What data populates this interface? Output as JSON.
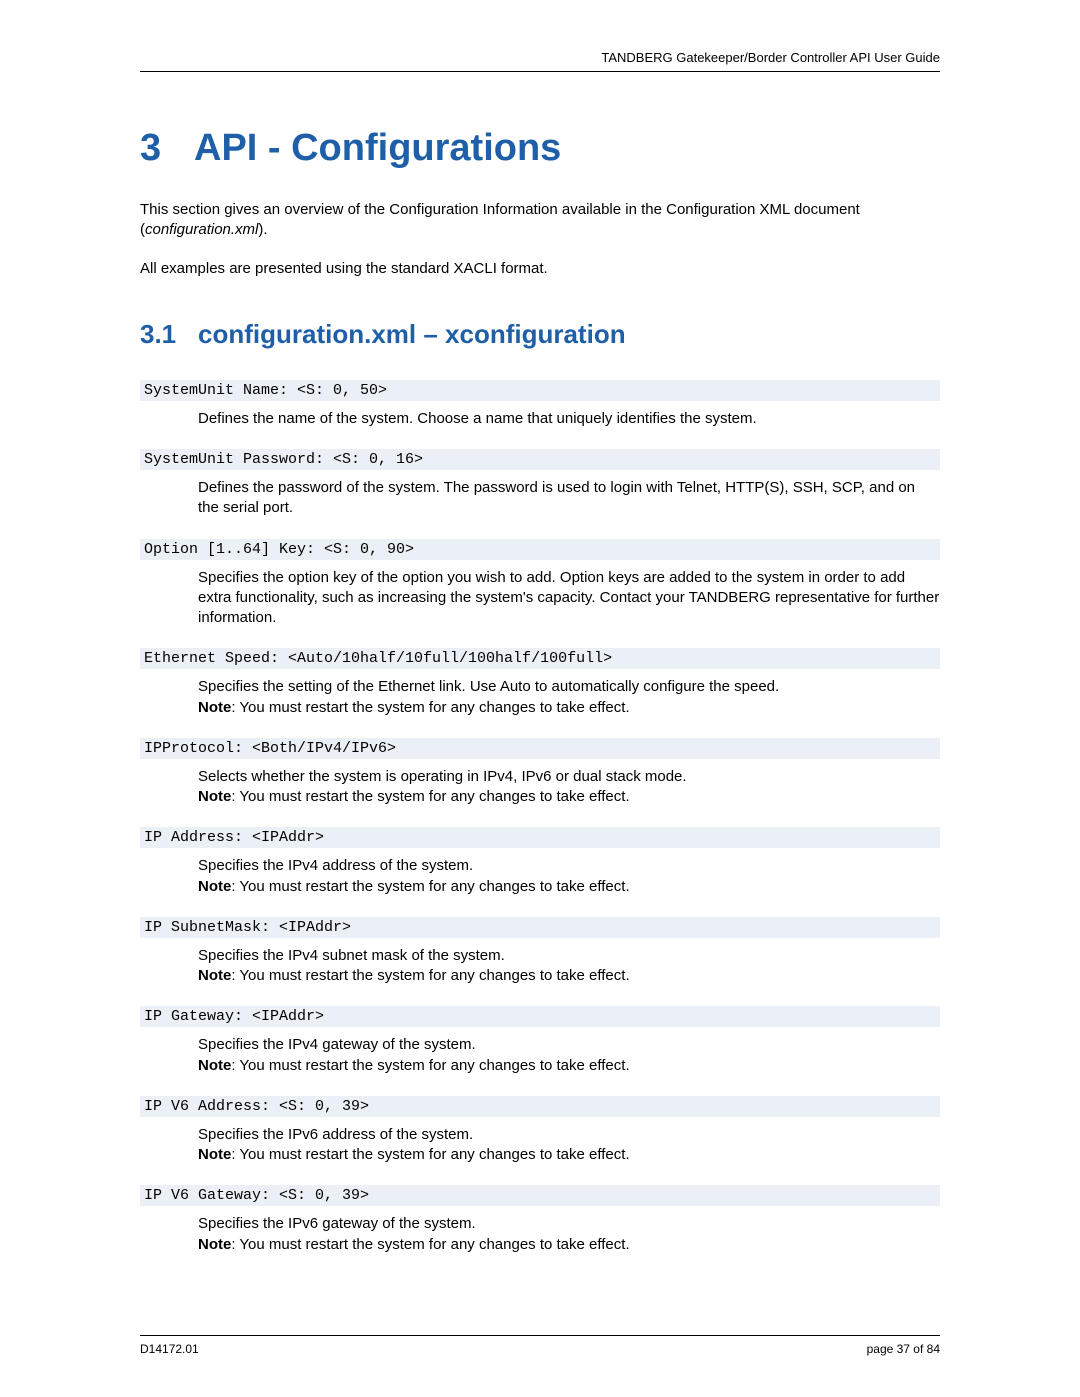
{
  "header": {
    "doc_title": "TANDBERG Gatekeeper/Border Controller API User Guide"
  },
  "h1": {
    "num": "3",
    "title": "API - Configurations"
  },
  "intro": {
    "p1": "This section gives an overview of the Configuration Information available in the Configuration XML document (",
    "p1_italic": "configuration.xml",
    "p1_end": ").",
    "p2": "All examples are presented using the standard XACLI format."
  },
  "h2": {
    "num": "3.1",
    "title": "configuration.xml – xconfiguration"
  },
  "items": [
    {
      "code": "SystemUnit Name: <S: 0, 50>",
      "desc": "Defines the name of the system. Choose a name that uniquely identifies the system.",
      "note": ""
    },
    {
      "code": "SystemUnit Password: <S: 0, 16>",
      "desc": "Defines the password of the system. The password is used to login with Telnet, HTTP(S), SSH, SCP, and on the serial port.",
      "note": ""
    },
    {
      "code": "Option [1..64] Key: <S: 0, 90>",
      "desc": "Specifies the option key of the option you wish to add. Option keys are added to the system in order to add extra functionality, such as increasing the system's capacity. Contact your TANDBERG representative for further information.",
      "note": ""
    },
    {
      "code": "Ethernet Speed: <Auto/10half/10full/100half/100full>",
      "desc": "Specifies the setting of the Ethernet link. Use Auto to automatically configure the speed.",
      "note": ": You must restart the system for any changes to take effect."
    },
    {
      "code": "IPProtocol: <Both/IPv4/IPv6>",
      "desc": "Selects whether the system is operating in IPv4, IPv6 or dual stack mode.",
      "note": ": You must restart the system for any changes to take effect."
    },
    {
      "code": "IP Address: <IPAddr>",
      "desc": "Specifies the IPv4 address of the system.",
      "note": ": You must restart the system for any changes to take effect."
    },
    {
      "code": "IP SubnetMask: <IPAddr>",
      "desc": "Specifies the IPv4 subnet mask of the system.",
      "note": ": You must restart the system for any changes to take effect."
    },
    {
      "code": "IP Gateway: <IPAddr>",
      "desc": "Specifies the IPv4 gateway of the system.",
      "note": ": You must restart the system for any changes to take effect."
    },
    {
      "code": "IP V6 Address: <S: 0, 39>",
      "desc": "Specifies the IPv6 address of the system.",
      "note": ": You must restart the system for any changes to take effect."
    },
    {
      "code": "IP V6 Gateway: <S: 0, 39>",
      "desc": "Specifies the IPv6 gateway of the system.",
      "note": ": You must restart the system for any changes to take effect."
    }
  ],
  "note_label": "Note",
  "footer": {
    "doc_id": "D14172.01",
    "page": "page 37 of 84"
  },
  "colors": {
    "heading": "#1e5fa8",
    "code_bg": "#ebf0f6",
    "text": "#000000",
    "bg": "#ffffff"
  }
}
